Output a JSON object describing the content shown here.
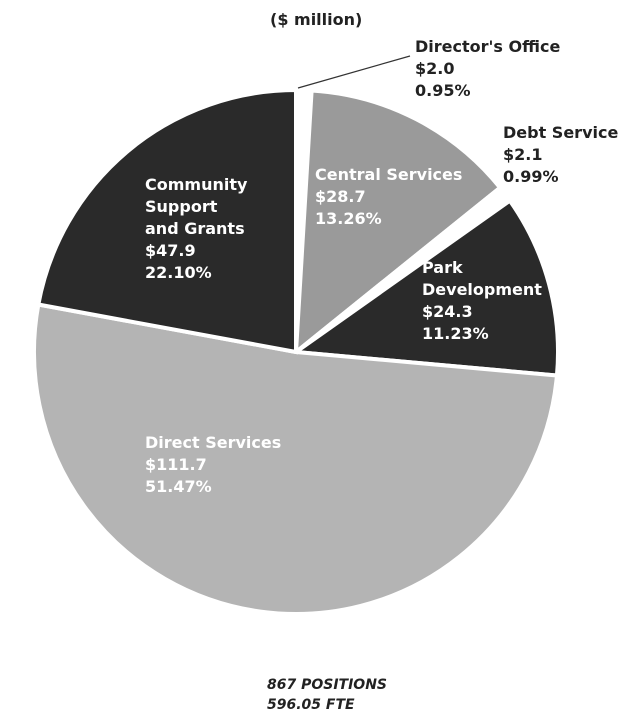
{
  "unit_label": "($ million)",
  "footer": {
    "positions": "867 POSITIONS",
    "fte": "596.05 FTE"
  },
  "chart_data": {
    "type": "pie",
    "unit": "$ million",
    "slices": [
      {
        "label": [
          "Director's Office"
        ],
        "value": "$2.0",
        "percent": "0.95%",
        "color": "#ffffff",
        "text_color": "#222222"
      },
      {
        "label": [
          "Central Services"
        ],
        "value": "$28.7",
        "percent": "13.26%",
        "color": "#9a9a9a",
        "text_color": "#ffffff"
      },
      {
        "label": [
          "Debt Service"
        ],
        "value": "$2.1",
        "percent": "0.99%",
        "color": "#ffffff",
        "text_color": "#222222"
      },
      {
        "label": [
          "Park",
          "Development"
        ],
        "value": "$24.3",
        "percent": "11.23%",
        "color": "#2a2a2a",
        "text_color": "#ffffff"
      },
      {
        "label": [
          "Direct Services"
        ],
        "value": "$111.7",
        "percent": "51.47%",
        "color": "#b4b4b4",
        "text_color": "#ffffff"
      },
      {
        "label": [
          "Community",
          "Support",
          "and Grants"
        ],
        "value": "$47.9",
        "percent": "22.10%",
        "color": "#2a2a2a",
        "text_color": "#ffffff"
      }
    ]
  }
}
